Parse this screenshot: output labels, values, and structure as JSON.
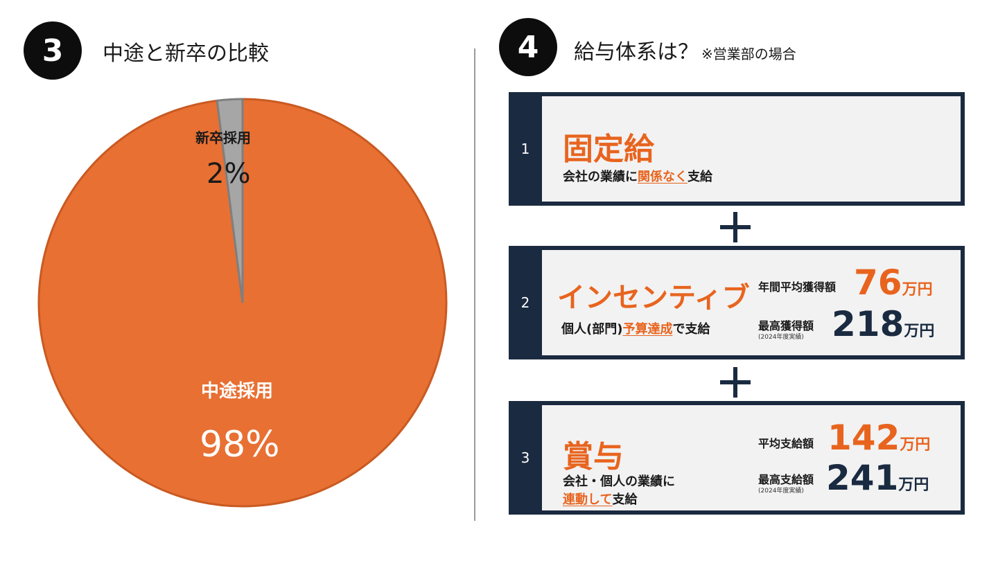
{
  "section3": {
    "badge": "3",
    "title": "中途と新卒の比較"
  },
  "section4": {
    "badge": "4",
    "title": "給与体系は？",
    "note": "※営業部の場合"
  },
  "chart_data": {
    "type": "pie",
    "categories": [
      "中途採用",
      "新卒採用"
    ],
    "values": [
      98,
      2
    ],
    "value_labels": [
      "98%",
      "2%"
    ],
    "colors": [
      "#e87033",
      "#a6a6a6"
    ],
    "title": ""
  },
  "cards": [
    {
      "index": "1",
      "title": "固定給",
      "desc_pre": "会社の業績に",
      "desc_em": "関係なく",
      "desc_post": "支給"
    },
    {
      "index": "2",
      "title": "インセンティブ",
      "desc_pre": "個人(部門)",
      "desc_em": "予算達成",
      "desc_post": "で支給",
      "stat1_label": "年間平均獲得額",
      "stat1_value": "76",
      "stat1_unit": "万円",
      "stat2_label": "最高獲得額",
      "stat2_sub": "(2024年度実績)",
      "stat2_value": "218",
      "stat2_unit": "万円"
    },
    {
      "index": "3",
      "title": "賞与",
      "desc_line1": "会社・個人の業績に",
      "desc_em": "連動して",
      "desc_post": "支給",
      "stat1_label": "平均支給額",
      "stat1_value": "142",
      "stat1_unit": "万円",
      "stat2_label": "最高支給額",
      "stat2_sub": "(2024年度実績)",
      "stat2_value": "241",
      "stat2_unit": "万円"
    }
  ]
}
